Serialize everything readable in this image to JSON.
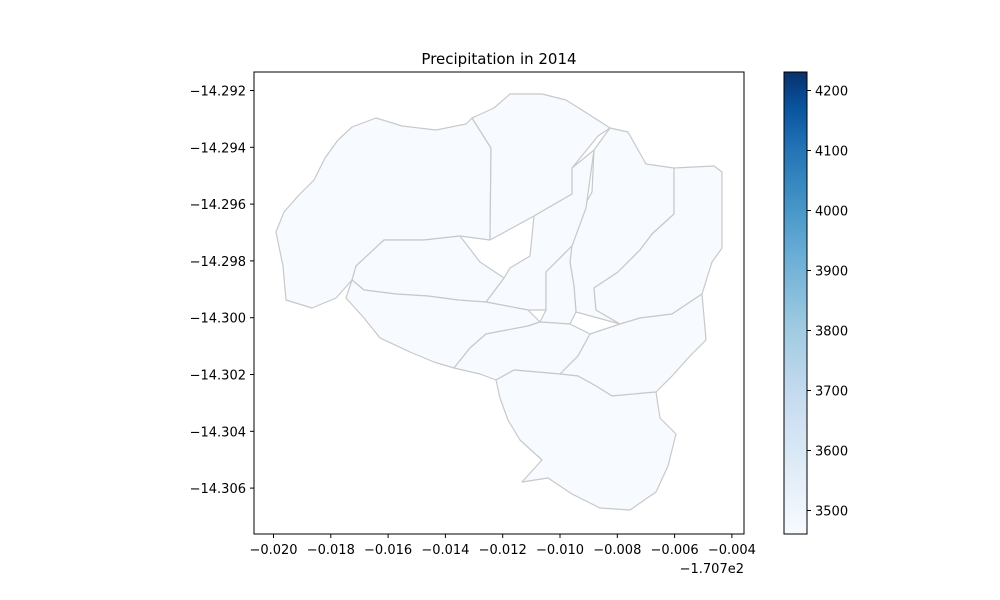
{
  "title": "Precipitation in 2014",
  "x_offset_label": "−1.707e2",
  "x_ticks": [
    "−0.020",
    "−0.018",
    "−0.016",
    "−0.014",
    "−0.012",
    "−0.010",
    "−0.008",
    "−0.006",
    "−0.004"
  ],
  "y_ticks": [
    "−14.292",
    "−14.294",
    "−14.296",
    "−14.298",
    "−14.300",
    "−14.302",
    "−14.304",
    "−14.306"
  ],
  "colorbar": {
    "colormap": "Blues",
    "ticks": [
      "3500",
      "3600",
      "3700",
      "3800",
      "3900",
      "4000",
      "4100",
      "4200"
    ],
    "range": [
      3460,
      4230
    ],
    "color_low": "#f7fbff",
    "color_high": "#08306b"
  },
  "map": {
    "fill_color": "#f7fbff",
    "border_color": "#c8c8c8"
  }
}
